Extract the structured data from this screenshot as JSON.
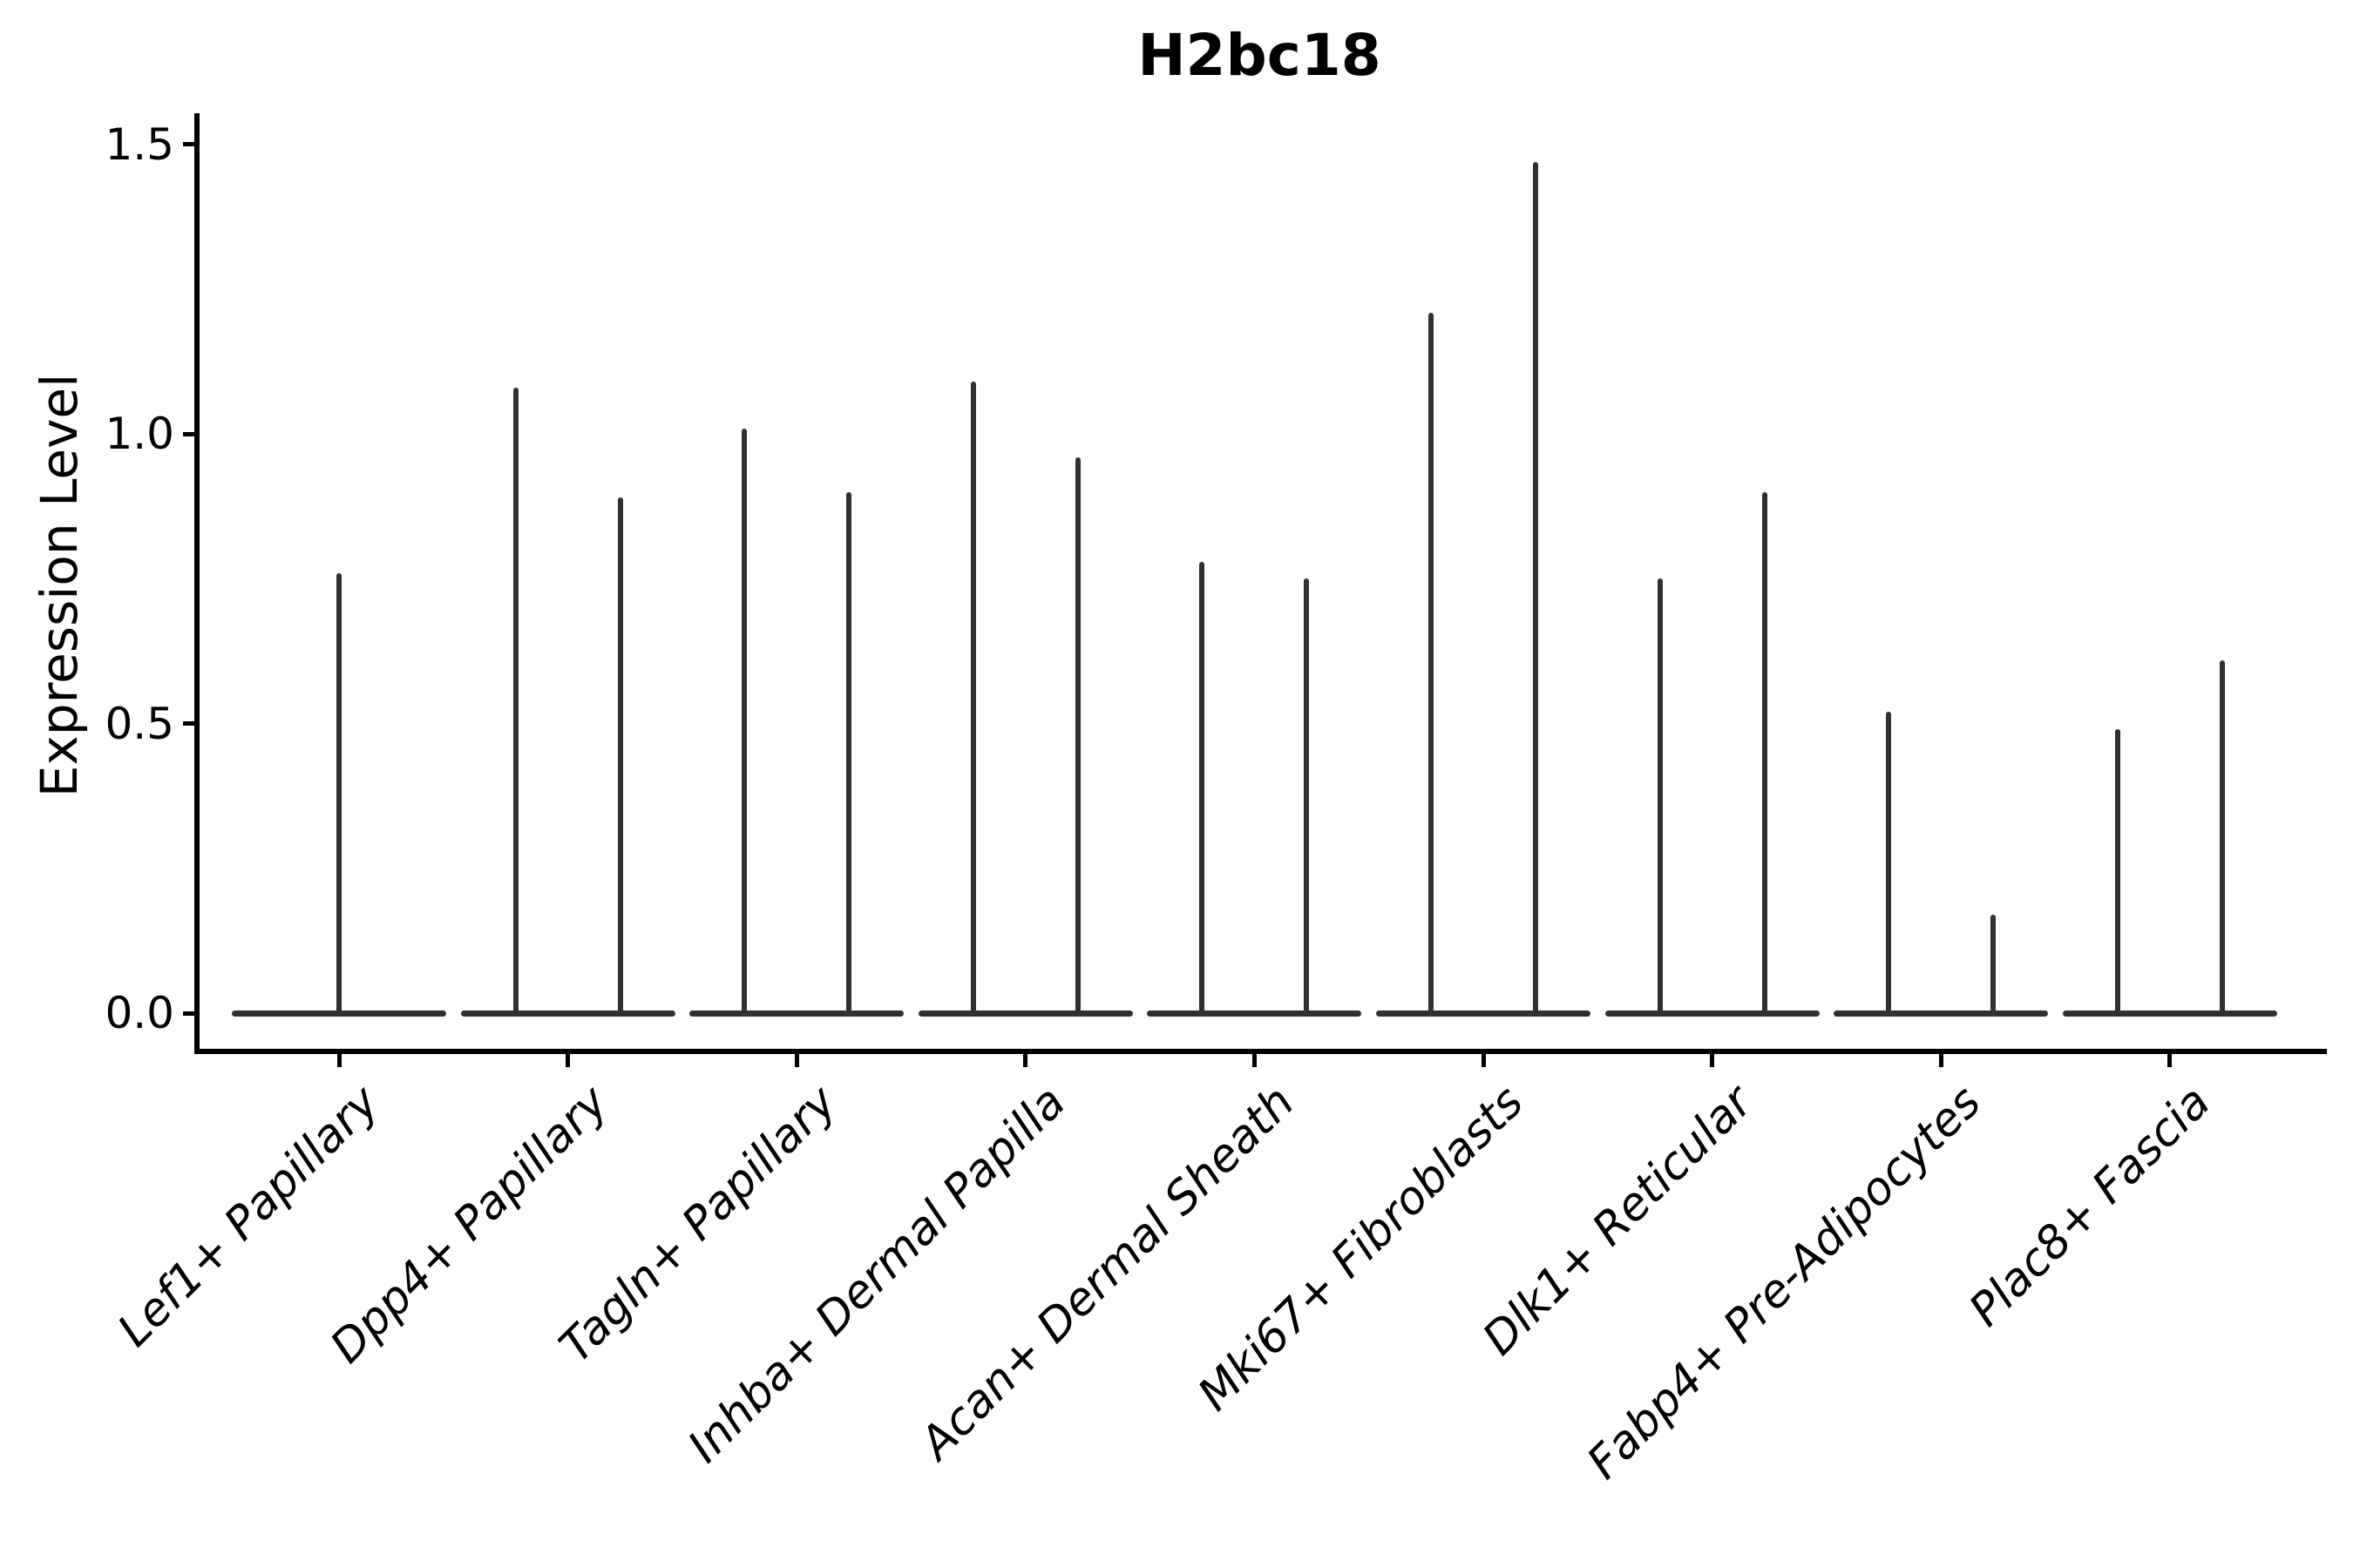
{
  "title": "H2bc18",
  "colors": {
    "background": "#ffffff",
    "axis": "#000000",
    "violin_line": "#303030",
    "text": "#000000"
  },
  "chart_data": {
    "type": "violin",
    "title": "H2bc18",
    "xlabel": "",
    "ylabel": "Expression Level",
    "ylim": [
      -0.06,
      1.55
    ],
    "yticks": [
      0.0,
      0.5,
      1.0,
      1.5
    ],
    "yticklabels": [
      "0.0",
      "0.5",
      "1.0",
      "1.5"
    ],
    "grid": false,
    "legend": null,
    "x_tick_rotation": 45,
    "baseline_value": 0.0,
    "shape_note": "Each violin is collapsed: a wide flat base at expression 0 with a thin vertical spike reaching the maximum value; category 1 shows one centered violin, categories 2-9 show two violins each.",
    "violins": [
      {
        "category": "Lef1+ Papillary",
        "peak_values": [
          0.76
        ]
      },
      {
        "category": "Dpp4+ Papillary",
        "peak_values": [
          1.08,
          0.89
        ]
      },
      {
        "category": "Tagln+ Papillary",
        "peak_values": [
          1.01,
          0.9
        ]
      },
      {
        "category": "Inhba+ Dermal Papilla",
        "peak_values": [
          1.09,
          0.96
        ]
      },
      {
        "category": "Acan+ Dermal Sheath",
        "peak_values": [
          0.78,
          0.75
        ]
      },
      {
        "category": "Mki67+ Fibroblasts",
        "peak_values": [
          1.21,
          1.47
        ]
      },
      {
        "category": "Dlk1+ Reticular",
        "peak_values": [
          0.75,
          0.9
        ]
      },
      {
        "category": "Fabp4+ Pre-Adipocytes",
        "peak_values": [
          0.52,
          0.17
        ]
      },
      {
        "category": "Plac8+ Fascia",
        "peak_values": [
          0.49,
          0.61
        ]
      }
    ]
  }
}
